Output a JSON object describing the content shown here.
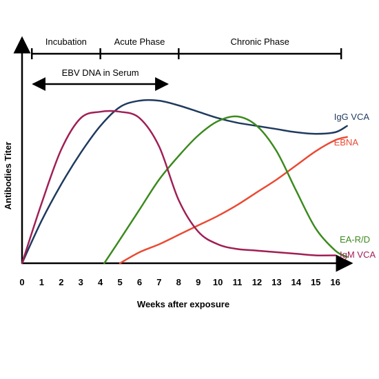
{
  "chart_data": {
    "type": "line",
    "xlabel": "Weeks after exposure",
    "ylabel": "Antibodies Titer",
    "xlim": [
      0,
      17
    ],
    "ylim": [
      0,
      100
    ],
    "x_ticks": [
      0,
      1,
      2,
      3,
      4,
      5,
      6,
      7,
      8,
      9,
      10,
      11,
      12,
      13,
      14,
      15,
      16
    ],
    "grid": false,
    "phases": [
      {
        "label": "Incubation",
        "start": 0.5,
        "end": 4
      },
      {
        "label": "Acute Phase",
        "start": 4,
        "end": 8
      },
      {
        "label": "Chronic Phase",
        "start": 8,
        "end": 16.3
      }
    ],
    "annotation": {
      "label": "EBV DNA in Serum",
      "start": 0.5,
      "end": 7.5
    },
    "series": [
      {
        "name": "IgG VCA",
        "color": "#1f3a5f",
        "x": [
          0,
          1,
          2,
          3,
          4,
          5,
          6,
          7,
          8,
          9,
          10,
          11,
          12,
          13,
          14,
          15,
          16,
          16.6
        ],
        "y": [
          0,
          27,
          50,
          70,
          87,
          99,
          103,
          103,
          100,
          96,
          92,
          89,
          87,
          85,
          83,
          82,
          83,
          87
        ]
      },
      {
        "name": "EBNA",
        "color": "#ea4a33",
        "x": [
          5,
          6,
          7,
          8,
          9,
          10,
          11,
          12,
          13,
          14,
          15,
          16,
          16.6
        ],
        "y": [
          0,
          7,
          12,
          18,
          24,
          30,
          37,
          45,
          53,
          62,
          71,
          78,
          80
        ]
      },
      {
        "name": "EA-R/D",
        "color": "#3b8a1d",
        "x": [
          4.2,
          5,
          6,
          7,
          8,
          9,
          10,
          11,
          12,
          13,
          14,
          15,
          16,
          16.6
        ],
        "y": [
          0,
          15,
          34,
          53,
          68,
          81,
          90,
          93,
          87,
          71,
          46,
          22,
          8,
          4
        ]
      },
      {
        "name": "IgM VCA",
        "color": "#a01f55",
        "x": [
          0,
          1,
          2,
          3,
          4,
          5,
          6,
          7,
          8,
          9,
          10,
          11,
          12,
          13,
          14,
          15,
          16
        ],
        "y": [
          0,
          38,
          72,
          92,
          96,
          96,
          92,
          74,
          40,
          20,
          12,
          9,
          8,
          7,
          6,
          5,
          5
        ]
      }
    ]
  }
}
